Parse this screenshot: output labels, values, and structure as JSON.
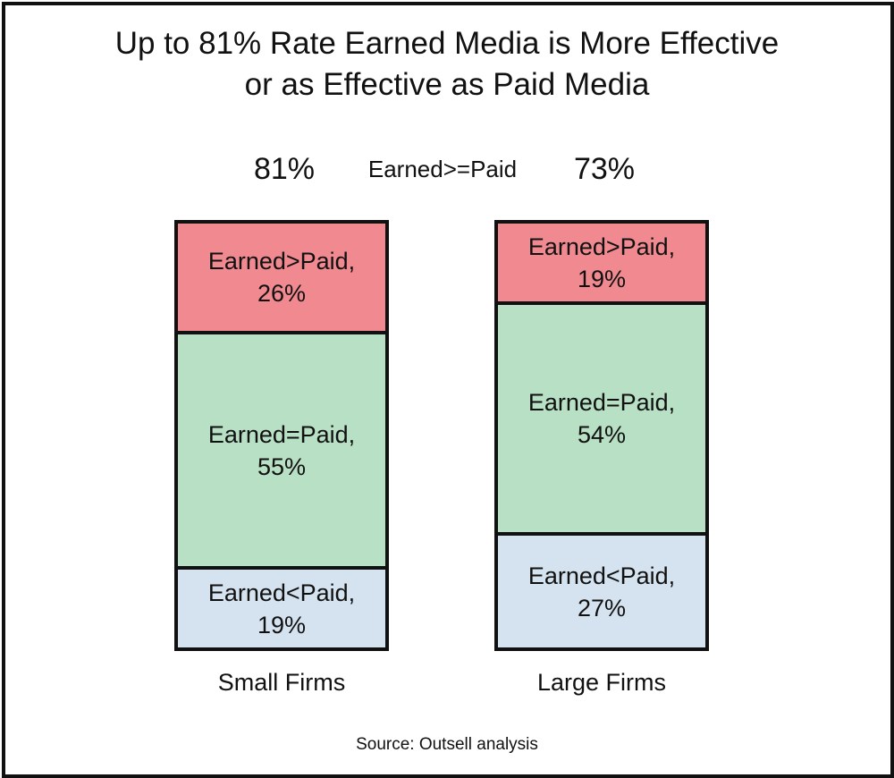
{
  "title": {
    "line1": "Up to 81% Rate Earned Media is More Effective",
    "line2": "or as Effective as Paid Media"
  },
  "summary": {
    "label": "Earned>=Paid",
    "small_value": "81%",
    "large_value": "73%"
  },
  "source": "Source: Outsell analysis",
  "colors": {
    "earned_gt_paid": "#f08a90",
    "earned_eq_paid": "#b8e0c4",
    "earned_lt_paid": "#d4e3ef",
    "border": "#111111"
  },
  "chart_data": {
    "type": "bar",
    "stacked": true,
    "categories": [
      "Small Firms",
      "Large Firms"
    ],
    "series": [
      {
        "name": "Earned>Paid",
        "values": [
          26,
          19
        ]
      },
      {
        "name": "Earned=Paid",
        "values": [
          55,
          54
        ]
      },
      {
        "name": "Earned<Paid",
        "values": [
          19,
          27
        ]
      }
    ],
    "segment_labels": {
      "small": [
        {
          "line1": "Earned>Paid,",
          "line2": "26%"
        },
        {
          "line1": "Earned=Paid,",
          "line2": "55%"
        },
        {
          "line1": "Earned<Paid,",
          "line2": "19%"
        }
      ],
      "large": [
        {
          "line1": "Earned>Paid,",
          "line2": "19%"
        },
        {
          "line1": "Earned=Paid,",
          "line2": "54%"
        },
        {
          "line1": "Earned<Paid,",
          "line2": "27%"
        }
      ]
    },
    "unit": "%"
  }
}
